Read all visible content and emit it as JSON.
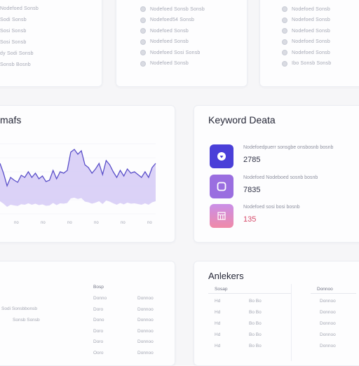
{
  "top_lists": {
    "left": [
      "Nodefoed Sonsb",
      "Sodi Sonsb",
      "Sosi Sonsb",
      "Sosi Sonsb",
      "dy Sodi Sonsb",
      "Sonsb Bosnb"
    ],
    "middle": [
      "Nodefoed Sonsb Sonsb",
      "Nodefoed54 Sonsb",
      "Nodefoed Sonsb",
      "Nodefoed Sonsb",
      "Nodefoed Sosi Sonsb",
      "Nodefoed Sonsb"
    ],
    "right": [
      "Nodefoed Sonsb",
      "Nodefoed Sonsb",
      "Nodefoed Sonsb",
      "Nodefoed Sonsb",
      "Nodefoed Sonsb",
      "Ibo Sonsb Sonsb"
    ]
  },
  "trends_card": {
    "title": "mafs",
    "x_labels": [
      "no",
      "no",
      "no",
      "no",
      "no",
      "no"
    ]
  },
  "keyword_card": {
    "title": "Keyword Deata",
    "items": [
      {
        "label": "Nodefoedpuerr sonsgbe onsbosnb bosnb",
        "value": "2785",
        "icon": "shield-icon",
        "color": "#4a3fd8"
      },
      {
        "label": "Nodefoed Nodeboed sosnb bosnb",
        "value": "7835",
        "icon": "square-icon",
        "color": "#9a6ee0"
      },
      {
        "label": "Nodefoed sosi bosi bosnb",
        "value": "135",
        "icon": "grid-icon",
        "color": "#e07aa8",
        "value_color": "#d64a6a"
      }
    ]
  },
  "bottom_left_card": {
    "col_header": "Bosp",
    "side_labels": [
      "Sodi Sonsbbonsb",
      "Sonsb Sonsb"
    ],
    "rows": [
      [
        "Donno",
        "Donnoo"
      ],
      [
        "Doro",
        "Donnoo"
      ],
      [
        "Dono",
        "Donnoo"
      ],
      [
        "Doro",
        "Donnoo"
      ],
      [
        "Doro",
        "Donnoo"
      ],
      [
        "Ooro",
        "Donnoo"
      ]
    ]
  },
  "ankers_card": {
    "title": "Anlekers",
    "headers": [
      "Sosap",
      "Donnoo"
    ],
    "rows": [
      [
        "Hd",
        "Bo Bo",
        "Donnoo"
      ],
      [
        "Hd",
        "Bo Bo",
        "Donnoo"
      ],
      [
        "Hd",
        "Bo Bo",
        "Donnoo"
      ],
      [
        "Hd",
        "Bo Bo",
        "Donnoo"
      ],
      [
        "Hd",
        "Bo Bo",
        "Donnoo"
      ]
    ]
  },
  "chart_data": {
    "type": "area",
    "title": "mafs",
    "x": [
      0,
      1,
      2,
      3,
      4,
      5,
      6,
      7,
      8,
      9,
      10,
      11,
      12,
      13,
      14,
      15,
      16,
      17,
      18,
      19,
      20,
      21,
      22,
      23,
      24,
      25,
      26,
      27,
      28,
      29,
      30,
      31,
      32,
      33,
      34,
      35,
      36,
      37,
      38,
      39,
      40,
      41,
      42,
      43,
      44
    ],
    "series": [
      {
        "values": [
          72,
          58,
          40,
          52,
          48,
          45,
          55,
          52,
          60,
          52,
          58,
          50,
          54,
          46,
          48,
          62,
          50,
          60,
          58,
          62,
          88,
          92,
          85,
          90,
          70,
          66,
          58,
          64,
          72,
          56,
          76,
          70,
          60,
          52,
          62,
          54,
          64,
          58,
          60,
          56,
          52,
          60,
          52,
          66,
          72
        ]
      }
    ],
    "xlabel": "",
    "ylabel": "",
    "colors": {
      "line": "#5a4fc9",
      "fill": "#d7cdf6"
    }
  }
}
